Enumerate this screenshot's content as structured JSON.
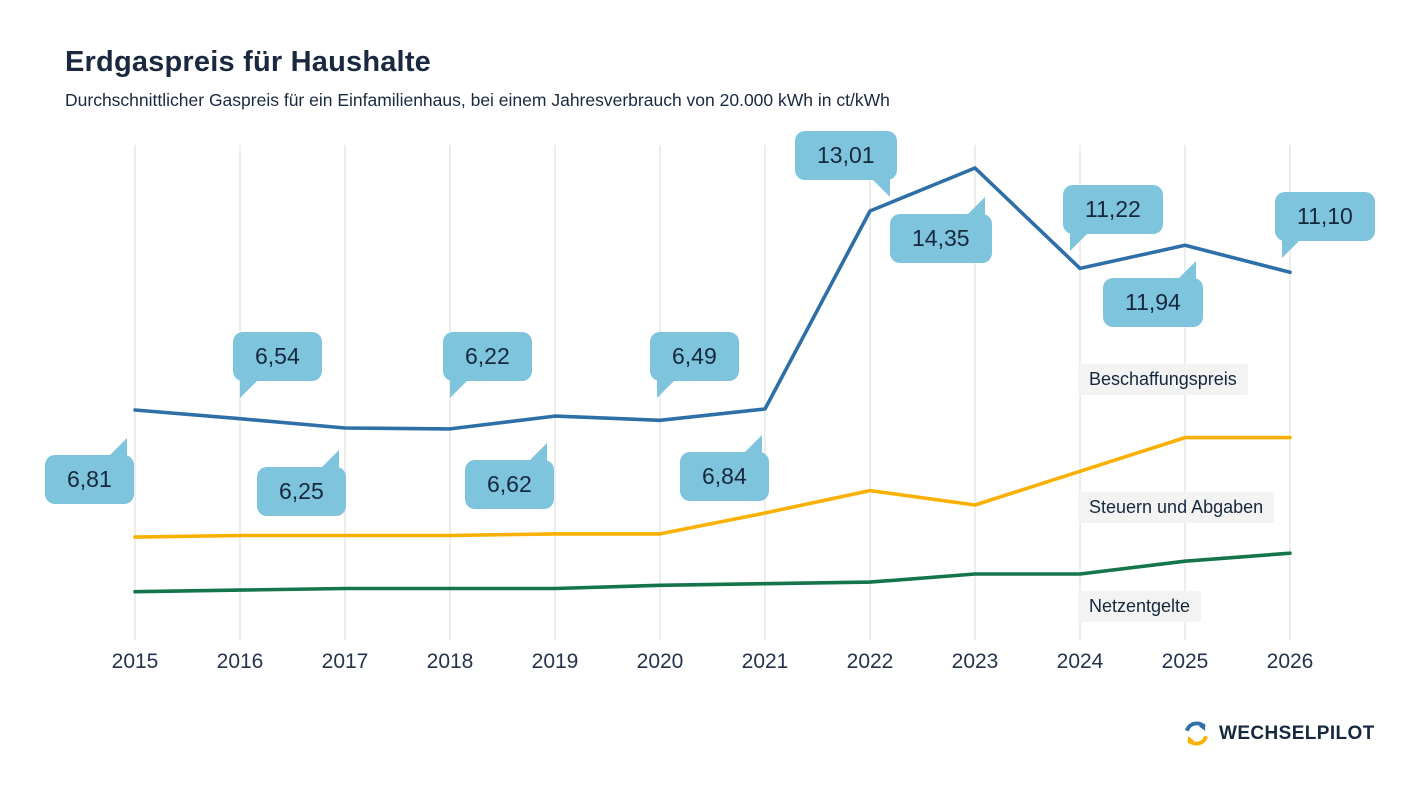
{
  "chart_data": {
    "type": "line",
    "title": "Erdgaspreis für Haushalte",
    "subtitle": "Durchschnittlicher Gaspreis für ein Einfamilienhaus, bei einem Jahresverbrauch von 20.000 kWh in ct/kWh",
    "unit": "ct/kWh",
    "x": [
      2015,
      2016,
      2017,
      2018,
      2019,
      2020,
      2021,
      2022,
      2023,
      2024,
      2025,
      2026
    ],
    "ylim": [
      0,
      15.5
    ],
    "grid": "vertical-only",
    "legend_position": "inline-right",
    "series": [
      {
        "name": "Beschaffungspreis",
        "color": "#2e6fa8",
        "values": [
          6.81,
          6.54,
          6.25,
          6.22,
          6.62,
          6.49,
          6.84,
          13.01,
          14.35,
          11.22,
          11.94,
          11.1
        ],
        "labels": [
          "6,81",
          "6,54",
          "6,25",
          "6,22",
          "6,62",
          "6,49",
          "6,84",
          "13,01",
          "14,35",
          "11,22",
          "11,94",
          "11,10"
        ]
      },
      {
        "name": "Steuern und Abgaben",
        "color": "#f9b000",
        "values": [
          2.85,
          2.9,
          2.9,
          2.9,
          2.95,
          2.95,
          3.6,
          4.3,
          3.85,
          4.9,
          5.95,
          5.95
        ],
        "labels": []
      },
      {
        "name": "Netzentgelte",
        "color": "#15754a",
        "values": [
          1.15,
          1.2,
          1.25,
          1.25,
          1.25,
          1.35,
          1.4,
          1.45,
          1.7,
          1.7,
          2.1,
          2.35
        ],
        "labels": []
      }
    ],
    "annotation_bubble_color": "#7dc4dc"
  },
  "footer": {
    "brand": "WECHSELPILOT"
  }
}
